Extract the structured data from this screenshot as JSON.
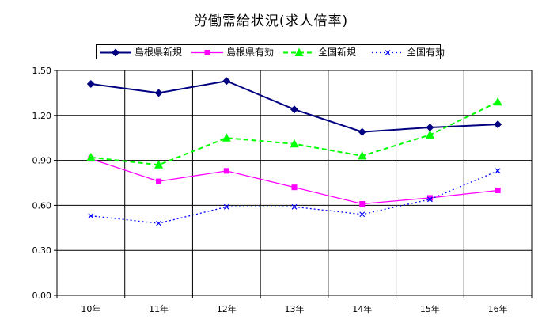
{
  "chart_data": {
    "type": "line",
    "title": "労働需給状況(求人倍率)",
    "categories": [
      "10年",
      "11年",
      "12年",
      "13年",
      "14年",
      "15年",
      "16年"
    ],
    "ylim": [
      0,
      1.5
    ],
    "yticks": [
      "0.00",
      "0.30",
      "0.60",
      "0.90",
      "1.20",
      "1.50"
    ],
    "grid": true,
    "legend_position": "top",
    "series": [
      {
        "name": "島根県新規",
        "values": [
          1.41,
          1.35,
          1.43,
          1.24,
          1.09,
          1.12,
          1.14
        ],
        "color": "#000080",
        "marker": "diamond",
        "dash": "solid"
      },
      {
        "name": "島根県有効",
        "values": [
          0.91,
          0.76,
          0.83,
          0.72,
          0.61,
          0.65,
          0.7
        ],
        "color": "#FF00FF",
        "marker": "square",
        "dash": "solid"
      },
      {
        "name": "全国新規",
        "values": [
          0.92,
          0.87,
          1.05,
          1.01,
          0.93,
          1.07,
          1.29
        ],
        "color": "#00FF00",
        "marker": "triangle",
        "dash": "dashed"
      },
      {
        "name": "全国有効",
        "values": [
          0.53,
          0.48,
          0.59,
          0.59,
          0.54,
          0.64,
          0.83
        ],
        "color": "#0000FF",
        "marker": "x",
        "dash": "dotted"
      }
    ]
  }
}
